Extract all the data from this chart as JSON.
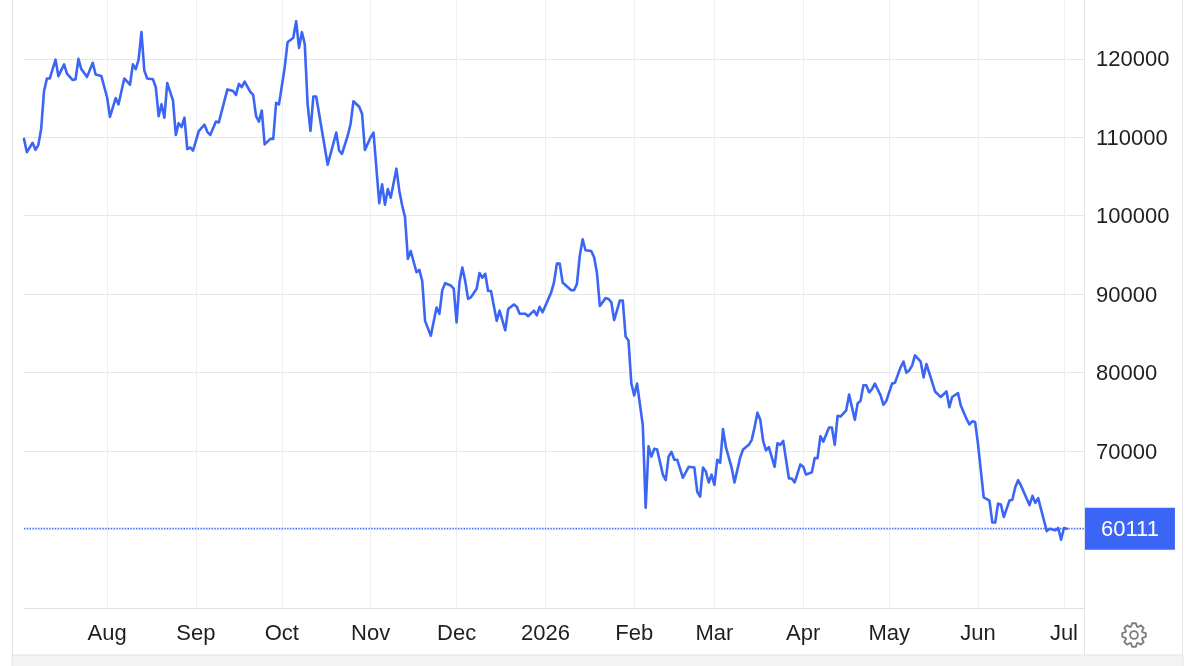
{
  "chart_data": {
    "type": "line",
    "x": [
      "2025-07-03",
      "2025-07-04",
      "2025-07-06",
      "2025-07-07",
      "2025-07-08",
      "2025-07-09",
      "2025-07-10",
      "2025-07-11",
      "2025-07-12",
      "2025-07-14",
      "2025-07-15",
      "2025-07-17",
      "2025-07-18",
      "2025-07-20",
      "2025-07-21",
      "2025-07-22",
      "2025-07-23",
      "2025-07-25",
      "2025-07-27",
      "2025-07-28",
      "2025-07-30",
      "2025-08-01",
      "2025-08-02",
      "2025-08-04",
      "2025-08-05",
      "2025-08-07",
      "2025-08-09",
      "2025-08-10",
      "2025-08-11",
      "2025-08-12",
      "2025-08-13",
      "2025-08-14",
      "2025-08-15",
      "2025-08-17",
      "2025-08-18",
      "2025-08-19",
      "2025-08-20",
      "2025-08-21",
      "2025-08-22",
      "2025-08-24",
      "2025-08-25",
      "2025-08-26",
      "2025-08-27",
      "2025-08-28",
      "2025-08-29",
      "2025-08-30",
      "2025-08-31",
      "2025-09-02",
      "2025-09-04",
      "2025-09-05",
      "2025-09-06",
      "2025-09-08",
      "2025-09-09",
      "2025-09-11",
      "2025-09-12",
      "2025-09-14",
      "2025-09-15",
      "2025-09-16",
      "2025-09-17",
      "2025-09-18",
      "2025-09-20",
      "2025-09-21",
      "2025-09-22",
      "2025-09-23",
      "2025-09-24",
      "2025-09-25",
      "2025-09-27",
      "2025-09-28",
      "2025-09-29",
      "2025-09-30",
      "2025-10-02",
      "2025-10-03",
      "2025-10-05",
      "2025-10-06",
      "2025-10-07",
      "2025-10-08",
      "2025-10-09",
      "2025-10-10",
      "2025-10-11",
      "2025-10-12",
      "2025-10-13",
      "2025-10-17",
      "2025-10-20",
      "2025-10-21",
      "2025-10-22",
      "2025-10-24",
      "2025-10-25",
      "2025-10-26",
      "2025-10-28",
      "2025-10-29",
      "2025-10-30",
      "2025-11-01",
      "2025-11-02",
      "2025-11-04",
      "2025-11-05",
      "2025-11-06",
      "2025-11-07",
      "2025-11-08",
      "2025-11-10",
      "2025-11-11",
      "2025-11-12",
      "2025-11-13",
      "2025-11-14",
      "2025-11-15",
      "2025-11-17",
      "2025-11-18",
      "2025-11-19",
      "2025-11-20",
      "2025-11-22",
      "2025-11-24",
      "2025-11-25",
      "2025-11-26",
      "2025-11-27",
      "2025-11-29",
      "2025-11-30",
      "2025-12-01",
      "2025-12-02",
      "2025-12-03",
      "2025-12-04",
      "2025-12-05",
      "2025-12-06",
      "2025-12-08",
      "2025-12-09",
      "2025-12-10",
      "2025-12-11",
      "2025-12-12",
      "2025-12-13",
      "2025-12-15",
      "2025-12-16",
      "2025-12-18",
      "2025-12-19",
      "2025-12-21",
      "2025-12-22",
      "2025-12-23",
      "2025-12-25",
      "2025-12-26",
      "2025-12-28",
      "2025-12-29",
      "2025-12-30",
      "2025-12-31",
      "2026-01-03",
      "2026-01-04",
      "2026-01-05",
      "2026-01-06",
      "2026-01-07",
      "2026-01-10",
      "2026-01-11",
      "2026-01-12",
      "2026-01-13",
      "2026-01-14",
      "2026-01-15",
      "2026-01-17",
      "2026-01-18",
      "2026-01-19",
      "2026-01-20",
      "2026-01-22",
      "2026-01-23",
      "2026-01-24",
      "2026-01-25",
      "2026-01-27",
      "2026-01-28",
      "2026-01-29",
      "2026-01-30",
      "2026-01-31",
      "2026-02-01",
      "2026-02-02",
      "2026-02-04",
      "2026-02-05",
      "2026-02-06",
      "2026-02-07",
      "2026-02-08",
      "2026-02-09",
      "2026-02-11",
      "2026-02-12",
      "2026-02-13",
      "2026-02-14",
      "2026-02-15",
      "2026-02-16",
      "2026-02-18",
      "2026-02-20",
      "2026-02-22",
      "2026-02-23",
      "2026-02-24",
      "2026-02-25",
      "2026-02-26",
      "2026-02-27",
      "2026-02-28",
      "2026-03-01",
      "2026-03-02",
      "2026-03-03",
      "2026-03-04",
      "2026-03-05",
      "2026-03-07",
      "2026-03-08",
      "2026-03-10",
      "2026-03-11",
      "2026-03-13",
      "2026-03-14",
      "2026-03-15",
      "2026-03-16",
      "2026-03-17",
      "2026-03-18",
      "2026-03-19",
      "2026-03-20",
      "2026-03-22",
      "2026-03-23",
      "2026-03-24",
      "2026-03-25",
      "2026-03-27",
      "2026-03-28",
      "2026-03-29",
      "2026-03-31",
      "2026-04-01",
      "2026-04-02",
      "2026-04-04",
      "2026-04-05",
      "2026-04-06",
      "2026-04-07",
      "2026-04-08",
      "2026-04-10",
      "2026-04-11",
      "2026-04-12",
      "2026-04-13",
      "2026-04-14",
      "2026-04-16",
      "2026-04-17",
      "2026-04-19",
      "2026-04-20",
      "2026-04-21",
      "2026-04-22",
      "2026-04-23",
      "2026-04-24",
      "2026-04-25",
      "2026-04-26",
      "2026-04-28",
      "2026-04-29",
      "2026-04-30",
      "2026-05-02",
      "2026-05-03",
      "2026-05-05",
      "2026-05-06",
      "2026-05-07",
      "2026-05-08",
      "2026-05-09",
      "2026-05-10",
      "2026-05-12",
      "2026-05-13",
      "2026-05-14",
      "2026-05-16",
      "2026-05-17",
      "2026-05-19",
      "2026-05-21",
      "2026-05-22",
      "2026-05-23",
      "2026-05-25",
      "2026-05-26",
      "2026-05-28",
      "2026-05-29",
      "2026-05-30",
      "2026-05-31",
      "2026-06-01",
      "2026-06-03",
      "2026-06-05",
      "2026-06-06",
      "2026-06-07",
      "2026-06-08",
      "2026-06-09",
      "2026-06-10",
      "2026-06-12",
      "2026-06-13",
      "2026-06-14",
      "2026-06-15",
      "2026-06-16",
      "2026-06-19",
      "2026-06-20",
      "2026-06-21",
      "2026-06-22",
      "2026-06-23",
      "2026-06-25",
      "2026-06-26",
      "2026-06-28",
      "2026-06-29",
      "2026-06-30",
      "2026-07-01",
      "2026-07-02"
    ],
    "series": [
      {
        "color": "#3b65f5",
        "values": [
          109800,
          108100,
          109300,
          108400,
          109000,
          111100,
          115900,
          117500,
          117500,
          119900,
          117800,
          119300,
          118100,
          117300,
          117400,
          120000,
          118700,
          117700,
          119500,
          118000,
          117800,
          115100,
          112600,
          115000,
          114200,
          117500,
          116700,
          119300,
          118700,
          119900,
          123400,
          118500,
          117500,
          117400,
          116400,
          112700,
          114200,
          112500,
          116900,
          114700,
          110300,
          111800,
          111300,
          112500,
          108500,
          108700,
          108300,
          110800,
          111600,
          110700,
          110300,
          112000,
          111900,
          114700,
          116100,
          115900,
          115400,
          116800,
          116400,
          117100,
          115800,
          115400,
          112700,
          112000,
          113400,
          109100,
          109800,
          109800,
          114400,
          114200,
          118900,
          122100,
          122700,
          124800,
          121400,
          123400,
          121900,
          114200,
          110800,
          115200,
          115200,
          106500,
          110600,
          108300,
          107900,
          110200,
          111700,
          114600,
          113900,
          113000,
          108400,
          110000,
          110600,
          101600,
          104000,
          101400,
          103400,
          102300,
          106000,
          103200,
          101300,
          99800,
          94500,
          95500,
          92800,
          93100,
          91700,
          86600,
          84700,
          88300,
          87500,
          90500,
          91400,
          91100,
          90700,
          86400,
          91500,
          93400,
          91700,
          89400,
          89600,
          90700,
          92700,
          92100,
          92600,
          90400,
          90400,
          86600,
          87900,
          85400,
          88100,
          88700,
          88400,
          87500,
          87500,
          87200,
          87900,
          87300,
          88400,
          87700,
          90200,
          91500,
          93900,
          93900,
          91500,
          90500,
          90500,
          91300,
          94900,
          97000,
          95600,
          95500,
          94700,
          92700,
          88500,
          89500,
          89400,
          89000,
          86700,
          89200,
          89200,
          84600,
          84100,
          78600,
          77100,
          78600,
          73300,
          62800,
          70600,
          69300,
          70300,
          70200,
          67000,
          66300,
          69300,
          69900,
          68900,
          68900,
          66600,
          68000,
          67900,
          64800,
          64200,
          67900,
          67400,
          66000,
          67000,
          65700,
          68900,
          68500,
          72800,
          70500,
          67900,
          66000,
          69200,
          70200,
          70800,
          71400,
          73000,
          74900,
          74000,
          71300,
          70100,
          70500,
          68000,
          71000,
          70800,
          71300,
          66500,
          66500,
          66000,
          68300,
          68000,
          67000,
          67300,
          69100,
          69100,
          71900,
          71200,
          73000,
          73000,
          70800,
          74500,
          74400,
          75200,
          77200,
          74000,
          76100,
          76400,
          78400,
          78400,
          77500,
          77900,
          78600,
          77100,
          75900,
          76400,
          78600,
          78700,
          80700,
          81400,
          80000,
          80300,
          80900,
          82200,
          81400,
          79400,
          81100,
          78800,
          77600,
          76900,
          77600,
          75600,
          76900,
          77400,
          75800,
          74100,
          73400,
          73800,
          73700,
          70900,
          64100,
          63700,
          60900,
          60900,
          63300,
          63200,
          61600,
          63700,
          63800,
          65400,
          66300,
          65600,
          63100,
          64300,
          63400,
          64000,
          62600,
          59800,
          60100,
          59900,
          60200,
          58700,
          60200,
          60100
        ]
      }
    ],
    "xlim": [
      "2025-07-03",
      "2026-07-08"
    ],
    "xticks": [
      {
        "value": "2025-08-01",
        "label": "Aug"
      },
      {
        "value": "2025-09-01",
        "label": "Sep"
      },
      {
        "value": "2025-10-01",
        "label": "Oct"
      },
      {
        "value": "2025-11-01",
        "label": "Nov"
      },
      {
        "value": "2025-12-01",
        "label": "Dec"
      },
      {
        "value": "2026-01-01",
        "label": "2026"
      },
      {
        "value": "2026-02-01",
        "label": "Feb"
      },
      {
        "value": "2026-03-01",
        "label": "Mar"
      },
      {
        "value": "2026-04-01",
        "label": "Apr"
      },
      {
        "value": "2026-05-01",
        "label": "May"
      },
      {
        "value": "2026-06-01",
        "label": "Jun"
      },
      {
        "value": "2026-07-01",
        "label": "Jul"
      }
    ],
    "ylim": [
      50000,
      127500
    ],
    "yticks": [
      {
        "value": 60000,
        "label": null
      },
      70000,
      80000,
      90000,
      100000,
      110000,
      120000
    ],
    "grid": true,
    "ref_lines": [
      {
        "axis": "y",
        "value": 60111,
        "label": "60111",
        "color": "#3b65f5",
        "line_style": "dotted"
      }
    ]
  }
}
